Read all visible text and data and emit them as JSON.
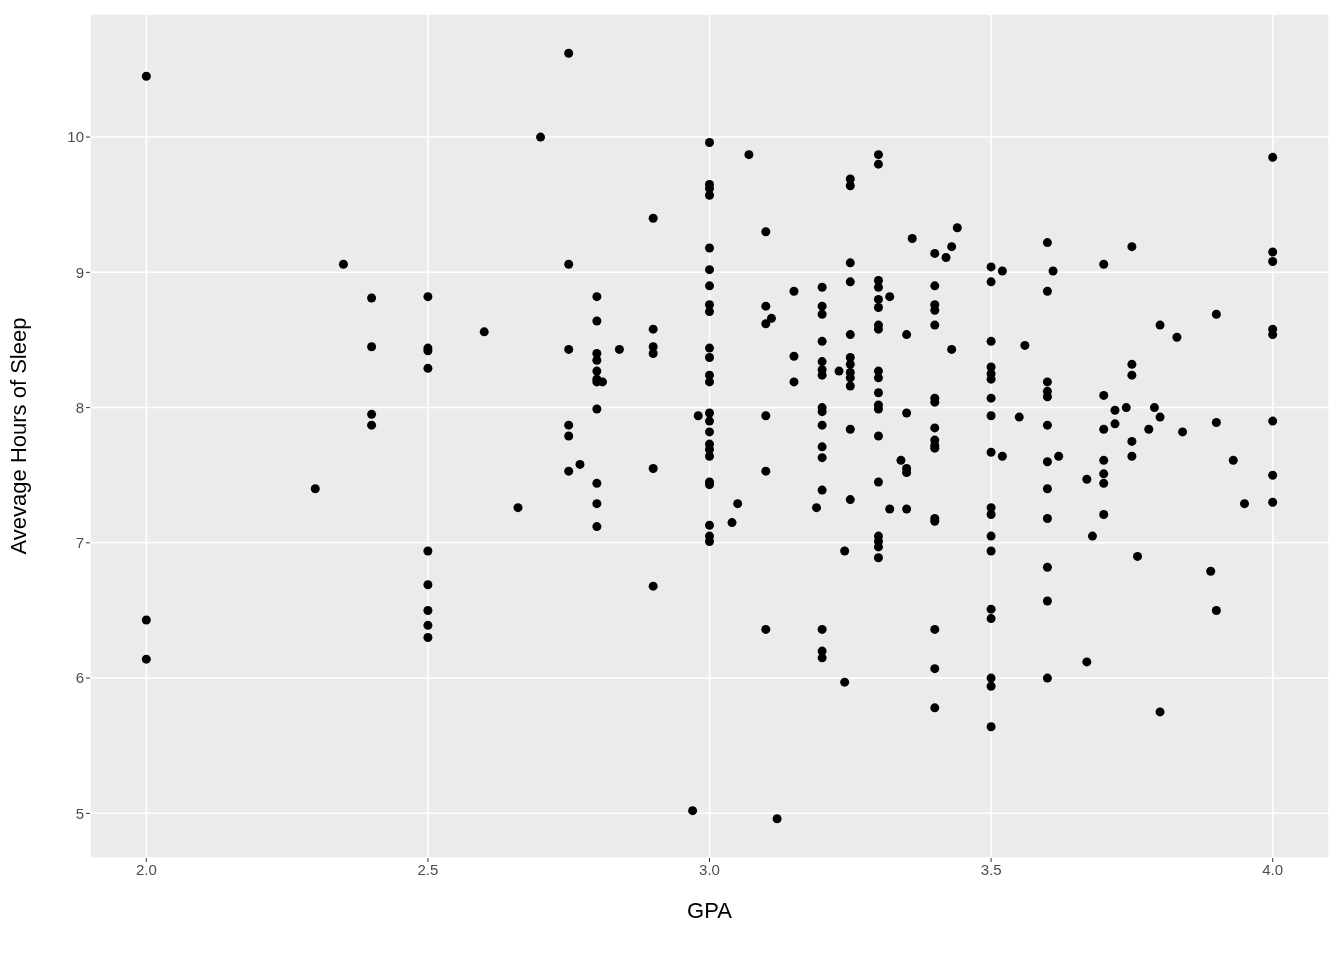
{
  "chart_data": {
    "type": "scatter",
    "xlabel": "GPA",
    "ylabel": "Avevage Hours of Sleep",
    "x": [
      2.0,
      2.0,
      2.0,
      2.3,
      2.35,
      2.4,
      2.4,
      2.4,
      2.4,
      2.5,
      2.5,
      2.5,
      2.5,
      2.5,
      2.5,
      2.5,
      2.5,
      2.5,
      2.6,
      2.66,
      2.7,
      2.75,
      2.75,
      2.75,
      2.75,
      2.75,
      2.75,
      2.77,
      2.8,
      2.8,
      2.8,
      2.8,
      2.8,
      2.8,
      2.8,
      2.8,
      2.8,
      2.8,
      2.8,
      2.81,
      2.84,
      2.9,
      2.9,
      2.9,
      2.9,
      2.9,
      2.9,
      2.97,
      2.98,
      3.0,
      3.0,
      3.0,
      3.0,
      3.0,
      3.0,
      3.0,
      3.0,
      3.0,
      3.0,
      3.0,
      3.0,
      3.0,
      3.0,
      3.0,
      3.0,
      3.0,
      3.0,
      3.0,
      3.0,
      3.0,
      3.0,
      3.0,
      3.0,
      3.04,
      3.05,
      3.07,
      3.1,
      3.1,
      3.1,
      3.1,
      3.1,
      3.1,
      3.11,
      3.12,
      3.15,
      3.15,
      3.15,
      3.19,
      3.2,
      3.2,
      3.2,
      3.2,
      3.2,
      3.2,
      3.2,
      3.2,
      3.2,
      3.2,
      3.2,
      3.2,
      3.2,
      3.2,
      3.2,
      3.2,
      3.23,
      3.24,
      3.24,
      3.25,
      3.25,
      3.25,
      3.25,
      3.25,
      3.25,
      3.25,
      3.25,
      3.25,
      3.25,
      3.25,
      3.25,
      3.3,
      3.3,
      3.3,
      3.3,
      3.3,
      3.3,
      3.3,
      3.3,
      3.3,
      3.3,
      3.3,
      3.3,
      3.3,
      3.3,
      3.3,
      3.3,
      3.3,
      3.3,
      3.3,
      3.32,
      3.32,
      3.34,
      3.35,
      3.35,
      3.35,
      3.35,
      3.35,
      3.36,
      3.4,
      3.4,
      3.4,
      3.4,
      3.4,
      3.4,
      3.4,
      3.4,
      3.4,
      3.4,
      3.4,
      3.4,
      3.4,
      3.4,
      3.4,
      3.4,
      3.42,
      3.43,
      3.43,
      3.44,
      3.5,
      3.5,
      3.5,
      3.5,
      3.5,
      3.5,
      3.5,
      3.5,
      3.5,
      3.5,
      3.5,
      3.5,
      3.5,
      3.5,
      3.5,
      3.5,
      3.5,
      3.5,
      3.52,
      3.52,
      3.55,
      3.56,
      3.6,
      3.6,
      3.6,
      3.6,
      3.6,
      3.6,
      3.6,
      3.6,
      3.6,
      3.6,
      3.6,
      3.6,
      3.61,
      3.62,
      3.67,
      3.67,
      3.68,
      3.7,
      3.7,
      3.7,
      3.7,
      3.7,
      3.7,
      3.7,
      3.72,
      3.72,
      3.74,
      3.75,
      3.75,
      3.75,
      3.75,
      3.75,
      3.76,
      3.78,
      3.79,
      3.8,
      3.8,
      3.8,
      3.83,
      3.84,
      3.89,
      3.9,
      3.9,
      3.9,
      3.93,
      3.95,
      4.0,
      4.0,
      4.0,
      4.0,
      4.0,
      4.0,
      4.0,
      4.0
    ],
    "values": [
      10.45,
      6.43,
      6.14,
      7.4,
      9.06,
      8.81,
      8.45,
      7.95,
      7.87,
      8.82,
      8.44,
      8.42,
      8.29,
      6.94,
      6.69,
      6.5,
      6.39,
      6.3,
      8.56,
      7.26,
      10.0,
      10.62,
      9.06,
      8.43,
      7.87,
      7.79,
      7.53,
      7.58,
      8.82,
      8.64,
      8.4,
      8.35,
      8.27,
      8.21,
      8.19,
      7.99,
      7.44,
      7.29,
      7.12,
      8.19,
      8.43,
      9.4,
      8.58,
      8.45,
      8.4,
      7.55,
      6.68,
      5.02,
      7.94,
      9.96,
      9.65,
      9.62,
      9.57,
      9.18,
      9.02,
      8.9,
      8.76,
      8.71,
      8.44,
      8.37,
      8.24,
      8.19,
      7.96,
      7.9,
      7.82,
      7.73,
      7.69,
      7.64,
      7.45,
      7.43,
      7.13,
      7.05,
      7.01,
      7.15,
      7.29,
      9.87,
      9.3,
      8.75,
      8.62,
      7.94,
      7.53,
      6.36,
      8.66,
      4.96,
      8.86,
      8.38,
      8.19,
      7.26,
      8.89,
      8.75,
      8.69,
      8.49,
      8.34,
      8.28,
      8.24,
      8.0,
      7.97,
      7.87,
      7.71,
      7.63,
      7.39,
      6.36,
      6.2,
      6.15,
      8.27,
      6.94,
      5.97,
      9.69,
      9.64,
      9.07,
      8.93,
      8.54,
      8.37,
      8.32,
      8.26,
      8.22,
      8.16,
      7.84,
      7.32,
      9.87,
      9.8,
      8.94,
      8.89,
      8.8,
      8.74,
      8.61,
      8.58,
      8.27,
      8.22,
      8.11,
      8.02,
      7.99,
      7.79,
      7.45,
      7.05,
      7.01,
      6.97,
      6.89,
      8.82,
      7.25,
      7.61,
      8.54,
      7.96,
      7.55,
      7.52,
      7.25,
      9.25,
      9.14,
      8.9,
      8.76,
      8.72,
      8.61,
      8.07,
      8.04,
      7.85,
      7.76,
      7.72,
      7.7,
      7.18,
      7.16,
      6.36,
      6.07,
      5.78,
      9.11,
      9.19,
      8.43,
      9.33,
      9.04,
      8.93,
      8.49,
      8.3,
      8.25,
      8.21,
      8.07,
      7.94,
      7.67,
      7.26,
      7.21,
      7.05,
      6.94,
      6.51,
      6.44,
      6.0,
      5.94,
      5.64,
      9.01,
      7.64,
      7.93,
      8.46,
      9.22,
      8.86,
      8.19,
      8.12,
      8.08,
      7.87,
      7.6,
      7.4,
      7.18,
      6.82,
      6.57,
      6.0,
      9.01,
      7.64,
      7.47,
      6.12,
      7.05,
      9.06,
      8.09,
      7.84,
      7.61,
      7.51,
      7.44,
      7.21,
      7.98,
      7.88,
      8.0,
      9.19,
      8.32,
      8.24,
      7.75,
      7.64,
      6.9,
      7.84,
      8.0,
      8.61,
      7.93,
      5.75,
      8.52,
      7.82,
      6.79,
      8.69,
      7.89,
      6.5,
      7.61,
      7.29,
      9.85,
      9.15,
      9.08,
      8.58,
      8.54,
      7.9,
      7.5,
      7.3
    ],
    "color": "#000000",
    "marker": "circle",
    "xlim": [
      1.9,
      4.1
    ],
    "xticks": [
      {
        "value": 2.0,
        "label": "2.0"
      },
      {
        "value": 2.5,
        "label": "2.5"
      },
      {
        "value": 3.0,
        "label": "3.0"
      },
      {
        "value": 3.5,
        "label": "3.5"
      },
      {
        "value": 4.0,
        "label": "4.0"
      }
    ],
    "ylim": [
      4.67,
      10.91
    ],
    "yticks": [
      5,
      6,
      7,
      8,
      9,
      10
    ],
    "grid": true
  }
}
